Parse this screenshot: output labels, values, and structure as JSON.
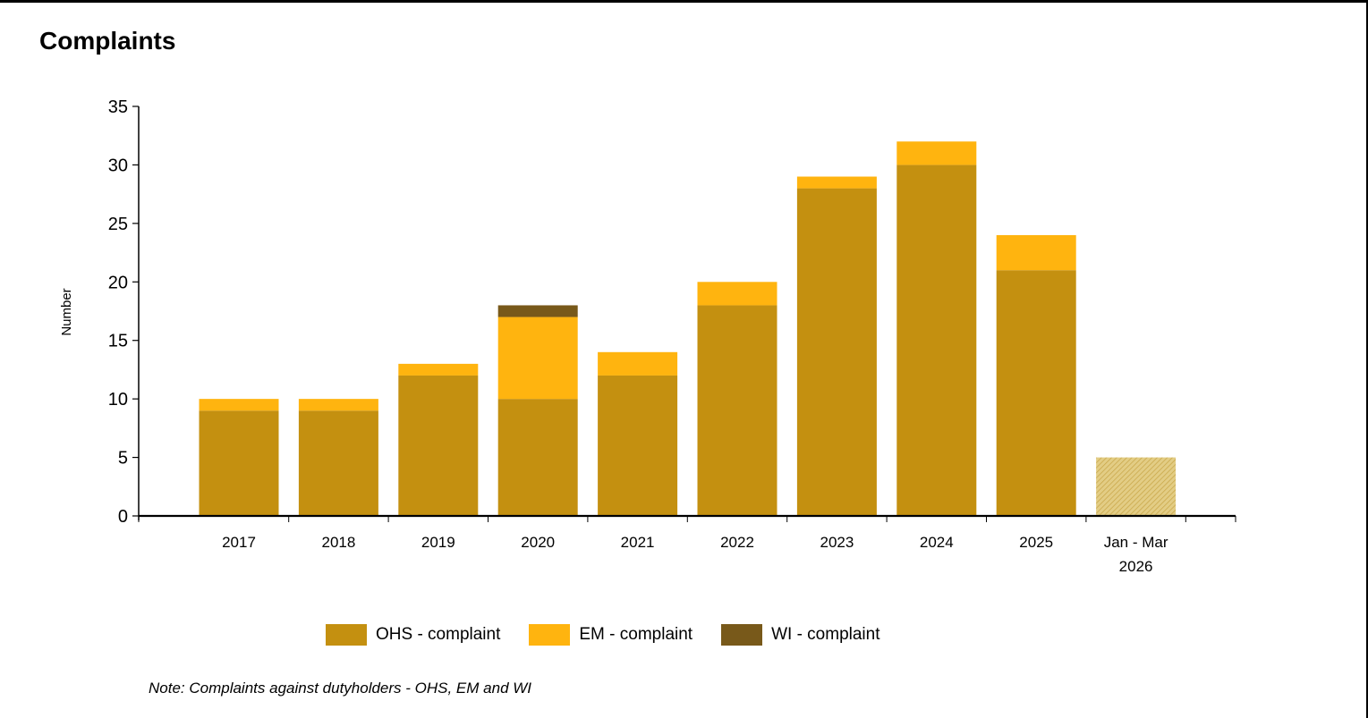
{
  "page": {
    "title": "Complaints",
    "note": "Note: Complaints against dutyholders - OHS, EM and WI"
  },
  "legend": [
    {
      "label": "OHS - complaint",
      "color": "#C49010"
    },
    {
      "label": "EM - complaint",
      "color": "#FFB40F"
    },
    {
      "label": "WI - complaint",
      "color": "#78591A"
    }
  ],
  "chart_data": {
    "type": "bar",
    "stacked": true,
    "title": "Complaints",
    "ylabel": "Number",
    "xlabel": "",
    "ylim": [
      0,
      35
    ],
    "yticks": [
      0,
      5,
      10,
      15,
      20,
      25,
      30,
      35
    ],
    "grid": false,
    "legend_position": "bottom",
    "categories": [
      [
        "2017"
      ],
      [
        "2018"
      ],
      [
        "2019"
      ],
      [
        "2020"
      ],
      [
        "2021"
      ],
      [
        "2022"
      ],
      [
        "2023"
      ],
      [
        "2024"
      ],
      [
        "2025"
      ],
      [
        "Jan - Mar",
        "2026"
      ]
    ],
    "series": [
      {
        "name": "OHS - complaint",
        "color": "#C49010",
        "values": [
          9,
          9,
          12,
          10,
          12,
          18,
          28,
          30,
          21,
          5
        ]
      },
      {
        "name": "EM - complaint",
        "color": "#FFB40F",
        "values": [
          1,
          1,
          1,
          7,
          2,
          2,
          1,
          2,
          3,
          0
        ]
      },
      {
        "name": "WI - complaint",
        "color": "#78591A",
        "values": [
          0,
          0,
          0,
          1,
          0,
          0,
          0,
          0,
          0,
          0
        ]
      }
    ],
    "partial_period_index": 9,
    "partial_period_style": "hatched"
  }
}
